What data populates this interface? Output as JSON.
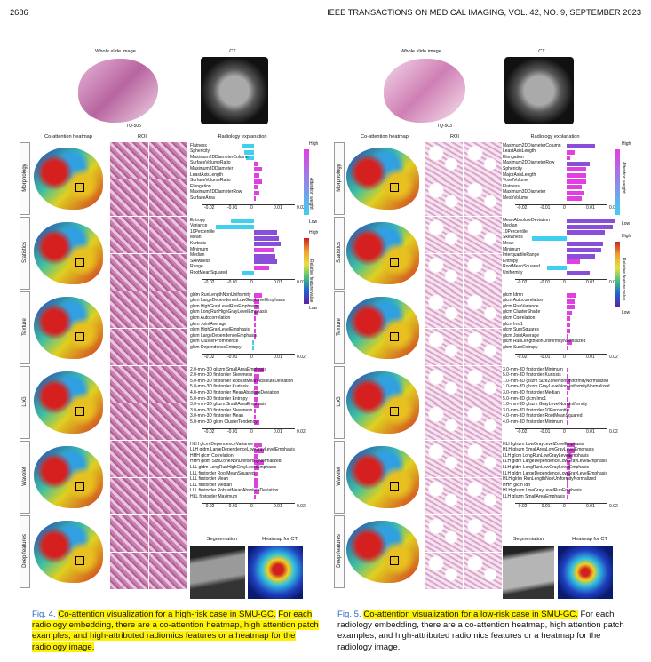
{
  "header": {
    "page_number": "2686",
    "journal": "IEEE TRANSACTIONS ON MEDICAL IMAGING, VOL. 42, NO. 9, SEPTEMBER 2023"
  },
  "fig4": {
    "wsi_title": "Whole slide image",
    "ct_title": "CT",
    "case_id": "TQ-505",
    "col_heatmap": "Co-attention heatmap",
    "col_roi": "ROI",
    "col_radiology": "Radiology explanation",
    "rows": [
      "Morphology",
      "Statistics",
      "Texture",
      "LoG",
      "Wavelet",
      "Deep features"
    ],
    "legend_high_1": "High",
    "legend_low_1": "Low",
    "legend_axis_1": "Attention weight",
    "legend_high_2": "High",
    "legend_low_2": "Low",
    "legend_axis_2": "Relative feature value",
    "seg_title": "Segmentation",
    "heat_ct_title": "Heatmap for CT",
    "groups": [
      {
        "features": [
          "Flatness",
          "Sphericity",
          "Maximum2DDiameterColumn",
          "SurfaceVolumeRatio",
          "Maximum3DDiameter",
          "LeastAxisLength",
          "SurfaceVolumeRatio",
          "Elongation",
          "Maximum2DDiameterRow",
          "SurfaceArea"
        ],
        "values": [
          -0.006,
          -0.005,
          -0.004,
          0.002,
          0.004,
          0.003,
          0.004,
          0.002,
          0.003,
          0.001
        ],
        "ticks": [
          "-0.02",
          "-0.01",
          "0",
          "0.01",
          "0.02"
        ]
      },
      {
        "features": [
          "Entropy",
          "Variance",
          "10Percentile",
          "Mean",
          "Kurtosis",
          "Minimum",
          "Median",
          "Skewness",
          "Range",
          "RootMeanSquared"
        ],
        "values": [
          -0.012,
          -0.02,
          0.012,
          0.013,
          0.014,
          0.01,
          0.011,
          0.012,
          0.008,
          -0.006
        ],
        "ticks": [
          "-0.02",
          "-0.01",
          "0",
          "0.01",
          "0.02"
        ]
      },
      {
        "features": [
          "glrlm RunLengthNonUniformity",
          "glcm LargeDependenceLowGrayLevelEmphasis",
          "glcm HighGrayLevelRunEmphasis",
          "glcm LongRunHighGrayLevelEmphasis",
          "glcm Autocorrelation",
          "glcm JointAverage",
          "glcm HighGrayLevelEmphasis",
          "glcm LargeDependenceEmphasis",
          "glcm ClusterProminence",
          "glcm DependenceEntropy"
        ],
        "values": [
          0.004,
          0.003,
          0.003,
          0.002,
          0.001,
          0.001,
          0.001,
          0.001,
          -0.001,
          -0.001
        ],
        "ticks": [
          "-0.02",
          "-0.01",
          "0",
          "0.01",
          "0.02"
        ]
      },
      {
        "features": [
          "2.0-mm-3D glszm SmallAreaEmphasis",
          "2.0-mm-3D firstorder Skewness",
          "5.0-mm-3D firstorder RobustMeanAbsoluteDeviation",
          "5.0-mm-3D firstorder Kurtosis",
          "4.0-mm-3D firstorder MeanAbsoluteDeviation",
          "5.0-mm-3D firstorder Entropy",
          "3.0-mm-3D glszm SmallAreaEmphasis",
          "3.0-mm-3D firstorder Skewness",
          "3.0-mm-3D firstorder Mean",
          "5.0-mm-3D glcm ClusterTendency"
        ],
        "values": [
          0.005,
          0.003,
          0.002,
          0.002,
          0.002,
          0.002,
          0.003,
          0.001,
          0.001,
          0.003
        ],
        "ticks": [
          "-0.02",
          "-0.01",
          "0",
          "0.01",
          "0.02"
        ]
      },
      {
        "features": [
          "HLH glcm DependenceVariance",
          "LLH gldm LargeDependenceLowGrayLevelEmphasis",
          "HHH glcm Correlation",
          "HHH gldm SizeZoneNonUniformityNormalized",
          "LLL gldm LongRunHighGrayLevelEmphasis",
          "LLL firstorder RootMeanSquared",
          "LLL firstorder Mean",
          "LLL firstorder Median",
          "LLL firstorder RobustMeanAbsoluteDeviation",
          "HLL firstorder Maximum"
        ],
        "values": [
          0.004,
          0.005,
          0.002,
          0.005,
          0.003,
          0.002,
          0.002,
          0.002,
          0.003,
          0.001
        ],
        "ticks": [
          "-0.02",
          "-0.01",
          "0",
          "0.01",
          "0.02"
        ]
      }
    ],
    "caption_label": "Fig. 4.",
    "caption_highlight": "Co-attention visualization for a high-risk case in SMU-GC.",
    "caption_rest": "For each radiology embedding, there are a co-attention heatmap, high attention patch examples, and high-attributed radiomics features or a heatmap for the radiology image."
  },
  "fig5": {
    "wsi_title": "Whole slide image",
    "ct_title": "CT",
    "case_id": "TQ-503",
    "col_heatmap": "Co-attention heatmap",
    "col_roi": "ROI",
    "col_radiology": "Radiology explanation",
    "rows": [
      "Morphology",
      "Statistics",
      "Texture",
      "LoG",
      "Wavelet",
      "Deep features"
    ],
    "legend_high_1": "High",
    "legend_low_1": "Low",
    "legend_axis_1": "Attention weight",
    "legend_high_2": "High",
    "legend_low_2": "Low",
    "legend_axis_2": "Relative feature value",
    "seg_title": "Segmentation",
    "heat_ct_title": "Heatmap for CT",
    "groups": [
      {
        "features": [
          "Maximum2DDiameterColumn",
          "LeastAxisLength",
          "Elongation",
          "Maximum2DDiameterRow",
          "Sphericity",
          "MajorAxisLength",
          "VoxelVolume",
          "Flatness",
          "Maximum3DDiameter",
          "MeshVolume"
        ],
        "values": [
          0.015,
          0.004,
          0.002,
          0.012,
          0.01,
          0.01,
          0.01,
          0.008,
          0.009,
          0.008
        ],
        "ticks": [
          "-0.02",
          "-0.01",
          "0",
          "0.01",
          "0.02"
        ]
      },
      {
        "features": [
          "MeanAbsoluteDeviation",
          "Median",
          "10Percentile",
          "Skewness",
          "Mean",
          "Minimum",
          "InterquartileRange",
          "Entropy",
          "RootMeanSquared",
          "Uniformity"
        ],
        "values": [
          0.025,
          0.024,
          0.02,
          -0.018,
          0.019,
          0.018,
          0.015,
          0.007,
          -0.01,
          0.012
        ],
        "ticks": [
          "-0.02",
          "-0.01",
          "0",
          "0.01",
          "0.02"
        ]
      },
      {
        "features": [
          "glcm Idmn",
          "glcm Autocorrelation",
          "glcm RunVariance",
          "glcm ClusterShade",
          "glcm Correlation",
          "glcm Imc1",
          "glcm SumSquares",
          "glcm JointAverage",
          "glcm RunLengthNonUniformityNormalized",
          "glcm SumEntropy"
        ],
        "values": [
          0.005,
          0.004,
          0.004,
          0.003,
          0.002,
          0.002,
          0.002,
          0.001,
          0.003,
          0.001
        ],
        "ticks": [
          "-0.02",
          "-0.01",
          "0",
          "0.01",
          "0.02"
        ]
      },
      {
        "features": [
          "3.0-mm-3D firstorder Minimum",
          "5.0-mm-3D firstorder Kurtosis",
          "1.0-mm-3D glszm SizeZoneNonUniformityNormalized",
          "1.0-mm-3D glszm GrayLevelNonUniformityNormalized",
          "3.0-mm-3D firstorder Median",
          "5.0-mm-3D glcm Imc1",
          "1.0-mm-3D glszm GrayLevelNonUniformity",
          "3.0-mm-3D firstorder 10Percentile",
          "4.0-mm-3D firstorder RootMeanSquared",
          "4.0-mm-3D firstorder Minimum"
        ],
        "values": [
          0.001,
          0.001,
          0.002,
          0.002,
          0.001,
          0.001,
          0.002,
          0.001,
          0.001,
          0.001
        ],
        "ticks": [
          "-0.02",
          "-0.01",
          "0",
          "0.01",
          "0.02"
        ]
      },
      {
        "features": [
          "HLH glszm LowGrayLevelZoneEmphasis",
          "HLH glszm SmallAreaLowGrayLevelEmphasis",
          "LLH glcm LongRunLowGrayLevelEmphasis",
          "LLH gldm LargeDependenceLowGrayLevelEmphasis",
          "LLH gldm LongRunLowGrayLevelEmphasis",
          "LLH gldm LargeDependenceLowGrayLevelEmphasis",
          "HLH glrlm RunLengthNonUniformityNormalized",
          "HHH glcm Idn",
          "HLH glszm LowGrayLevelRunEmphasis",
          "LLH glszm SmallAreaEmphasis"
        ],
        "values": [
          0.004,
          0.004,
          0.003,
          0.002,
          0.002,
          0.002,
          0.001,
          0.001,
          0.002,
          0.001
        ],
        "ticks": [
          "-0.02",
          "-0.01",
          "0",
          "0.01",
          "0.02"
        ]
      }
    ],
    "caption_label": "Fig. 5.",
    "caption_highlight": "Co-attention visualization for a low-risk case in SMU-GC.",
    "caption_rest": "For each radiology embedding, there are a co-attention heatmap, high attention patch examples, and high-attributed radiomics features or a heatmap for the radiology image."
  },
  "colors": {
    "cyan": "#3fd0f0",
    "magenta": "#e040e0",
    "purple": "#8a4fd8"
  }
}
